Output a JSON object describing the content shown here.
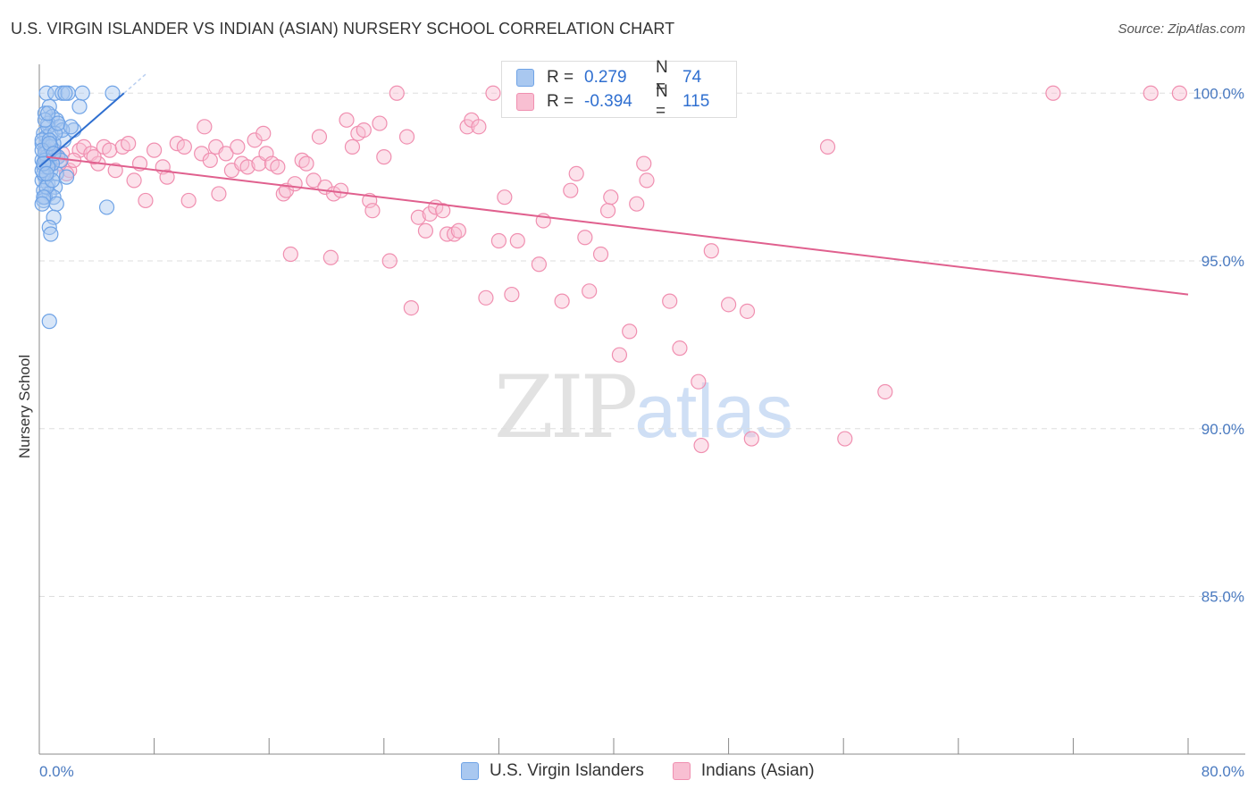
{
  "title": "U.S. VIRGIN ISLANDER VS INDIAN (ASIAN) NURSERY SCHOOL CORRELATION CHART",
  "source": "Source: ZipAtlas.com",
  "watermark": {
    "zip": "ZIP",
    "atlas": "atlas"
  },
  "colors": {
    "blue": "#6fa3e6",
    "blue_fill": "#a9c8f0",
    "blue_line": "#2f6fd0",
    "pink": "#f08fb0",
    "pink_fill": "#f8bfd2",
    "pink_line": "#e0608e",
    "grid": "#dddddd",
    "axis": "#888888",
    "tick_text": "#4a7ac0"
  },
  "legend_top": {
    "rows": [
      {
        "r_label": "R =",
        "r_value": "0.279",
        "n_label": "N =",
        "n_value": "74"
      },
      {
        "r_label": "R =",
        "r_value": "-0.394",
        "n_label": "N =",
        "n_value": "115"
      }
    ]
  },
  "legend_bottom": {
    "series1": "U.S. Virgin Islanders",
    "series2": "Indians (Asian)"
  },
  "chart_data": {
    "type": "scatter",
    "title": "U.S. VIRGIN ISLANDER VS INDIAN (ASIAN) NURSERY SCHOOL CORRELATION CHART",
    "xlabel": "",
    "ylabel": "Nursery School",
    "xlim": [
      0,
      80
    ],
    "ylim": [
      80.3,
      100.7
    ],
    "x_tick_labels": [
      "0.0%",
      "80.0%"
    ],
    "y_ticks": [
      85,
      90,
      95,
      100
    ],
    "y_tick_labels": [
      "85.0%",
      "90.0%",
      "95.0%",
      "100.0%"
    ],
    "grid": true,
    "series": [
      {
        "name": "U.S. Virgin Islanders",
        "r": 0.279,
        "n": 74,
        "trend": {
          "x": [
            0.0,
            5.9
          ],
          "y": [
            97.8,
            100.0
          ]
        },
        "points": [
          [
            0.5,
            100.0
          ],
          [
            1.1,
            100.0
          ],
          [
            1.6,
            100.0
          ],
          [
            2.0,
            100.0
          ],
          [
            3.0,
            100.0
          ],
          [
            5.1,
            100.0
          ],
          [
            0.7,
            99.6
          ],
          [
            2.8,
            99.6
          ],
          [
            0.4,
            99.4
          ],
          [
            0.9,
            99.3
          ],
          [
            1.2,
            99.2
          ],
          [
            0.6,
            99.1
          ],
          [
            1.4,
            99.0
          ],
          [
            2.4,
            98.9
          ],
          [
            0.3,
            98.8
          ],
          [
            0.8,
            98.8
          ],
          [
            0.5,
            98.7
          ],
          [
            1.7,
            98.6
          ],
          [
            0.2,
            98.5
          ],
          [
            0.6,
            98.4
          ],
          [
            1.0,
            98.5
          ],
          [
            0.4,
            98.3
          ],
          [
            0.9,
            98.2
          ],
          [
            1.3,
            98.1
          ],
          [
            0.2,
            98.0
          ],
          [
            0.5,
            98.0
          ],
          [
            0.7,
            97.9
          ],
          [
            1.5,
            98.0
          ],
          [
            0.3,
            97.8
          ],
          [
            0.8,
            97.7
          ],
          [
            0.4,
            97.5
          ],
          [
            1.2,
            97.6
          ],
          [
            1.9,
            97.5
          ],
          [
            0.2,
            97.4
          ],
          [
            0.6,
            97.3
          ],
          [
            1.1,
            97.2
          ],
          [
            0.3,
            97.1
          ],
          [
            0.7,
            97.0
          ],
          [
            0.4,
            96.9
          ],
          [
            1.0,
            96.9
          ],
          [
            0.3,
            96.8
          ],
          [
            1.2,
            96.7
          ],
          [
            4.7,
            96.6
          ],
          [
            1.0,
            96.3
          ],
          [
            0.7,
            96.0
          ],
          [
            0.8,
            95.8
          ],
          [
            0.7,
            93.2
          ],
          [
            0.2,
            98.6
          ],
          [
            0.5,
            98.1
          ],
          [
            0.9,
            97.9
          ],
          [
            0.3,
            97.6
          ],
          [
            0.6,
            99.0
          ],
          [
            0.4,
            98.2
          ],
          [
            1.6,
            98.9
          ],
          [
            0.2,
            97.7
          ],
          [
            0.8,
            98.4
          ],
          [
            1.1,
            98.8
          ],
          [
            0.5,
            97.2
          ],
          [
            0.3,
            96.9
          ],
          [
            0.7,
            98.6
          ],
          [
            0.4,
            98.0
          ],
          [
            0.9,
            97.4
          ],
          [
            1.3,
            99.1
          ],
          [
            0.2,
            98.3
          ],
          [
            0.6,
            97.8
          ],
          [
            2.2,
            99.0
          ],
          [
            0.4,
            99.2
          ],
          [
            1.8,
            100.0
          ],
          [
            0.3,
            97.9
          ],
          [
            0.7,
            98.5
          ],
          [
            0.5,
            97.6
          ],
          [
            1.0,
            98.2
          ],
          [
            0.2,
            96.7
          ],
          [
            0.6,
            99.4
          ]
        ]
      },
      {
        "name": "Indians (Asian)",
        "r": -0.394,
        "n": 115,
        "trend": {
          "x": [
            0.5,
            80.0
          ],
          "y": [
            98.1,
            94.0
          ]
        },
        "points": [
          [
            0.6,
            98.3
          ],
          [
            0.9,
            98.0
          ],
          [
            1.2,
            98.1
          ],
          [
            1.6,
            98.2
          ],
          [
            2.1,
            97.7
          ],
          [
            2.8,
            98.3
          ],
          [
            3.1,
            98.4
          ],
          [
            3.6,
            98.2
          ],
          [
            4.1,
            97.9
          ],
          [
            4.5,
            98.4
          ],
          [
            4.9,
            98.3
          ],
          [
            5.3,
            97.7
          ],
          [
            5.8,
            98.4
          ],
          [
            6.2,
            98.5
          ],
          [
            6.6,
            97.4
          ],
          [
            7.0,
            97.9
          ],
          [
            7.4,
            96.8
          ],
          [
            8.0,
            98.3
          ],
          [
            8.6,
            97.8
          ],
          [
            8.9,
            97.5
          ],
          [
            9.6,
            98.5
          ],
          [
            10.1,
            98.4
          ],
          [
            10.4,
            96.8
          ],
          [
            11.3,
            98.2
          ],
          [
            11.5,
            99.0
          ],
          [
            11.9,
            98.0
          ],
          [
            12.3,
            98.4
          ],
          [
            12.5,
            97.0
          ],
          [
            13.0,
            98.2
          ],
          [
            13.4,
            97.7
          ],
          [
            13.8,
            98.4
          ],
          [
            14.1,
            97.9
          ],
          [
            14.5,
            97.8
          ],
          [
            15.0,
            98.6
          ],
          [
            15.3,
            97.9
          ],
          [
            15.6,
            98.8
          ],
          [
            15.8,
            98.2
          ],
          [
            16.2,
            97.9
          ],
          [
            16.6,
            97.8
          ],
          [
            17.0,
            97.0
          ],
          [
            17.2,
            97.1
          ],
          [
            17.5,
            95.2
          ],
          [
            17.8,
            97.3
          ],
          [
            18.3,
            98.0
          ],
          [
            18.6,
            97.9
          ],
          [
            19.1,
            97.4
          ],
          [
            19.5,
            98.7
          ],
          [
            19.9,
            97.2
          ],
          [
            20.3,
            95.1
          ],
          [
            20.5,
            97.0
          ],
          [
            21.0,
            97.1
          ],
          [
            21.4,
            99.2
          ],
          [
            21.8,
            98.4
          ],
          [
            22.2,
            98.8
          ],
          [
            22.6,
            98.9
          ],
          [
            23.0,
            96.8
          ],
          [
            23.2,
            96.5
          ],
          [
            23.7,
            99.1
          ],
          [
            24.0,
            98.1
          ],
          [
            24.4,
            95.0
          ],
          [
            24.9,
            100.0
          ],
          [
            25.6,
            98.7
          ],
          [
            25.9,
            93.6
          ],
          [
            26.4,
            96.3
          ],
          [
            26.9,
            95.9
          ],
          [
            27.2,
            96.4
          ],
          [
            27.6,
            96.6
          ],
          [
            28.1,
            96.5
          ],
          [
            28.4,
            95.8
          ],
          [
            28.9,
            95.8
          ],
          [
            29.2,
            95.9
          ],
          [
            29.8,
            99.0
          ],
          [
            30.1,
            99.2
          ],
          [
            30.6,
            99.0
          ],
          [
            31.1,
            93.9
          ],
          [
            31.6,
            100.0
          ],
          [
            32.0,
            95.6
          ],
          [
            32.4,
            96.9
          ],
          [
            32.9,
            94.0
          ],
          [
            33.3,
            95.6
          ],
          [
            34.8,
            94.9
          ],
          [
            35.1,
            96.2
          ],
          [
            36.4,
            93.8
          ],
          [
            37.0,
            97.1
          ],
          [
            37.4,
            97.6
          ],
          [
            38.0,
            95.7
          ],
          [
            38.3,
            94.1
          ],
          [
            39.1,
            95.2
          ],
          [
            39.6,
            96.5
          ],
          [
            39.8,
            96.9
          ],
          [
            40.4,
            92.2
          ],
          [
            41.1,
            92.9
          ],
          [
            41.6,
            96.7
          ],
          [
            42.1,
            97.9
          ],
          [
            42.3,
            97.4
          ],
          [
            43.9,
            93.8
          ],
          [
            44.6,
            92.4
          ],
          [
            45.9,
            91.4
          ],
          [
            46.1,
            89.5
          ],
          [
            46.8,
            95.3
          ],
          [
            47.0,
            100.0
          ],
          [
            48.0,
            93.7
          ],
          [
            49.3,
            93.5
          ],
          [
            49.6,
            89.7
          ],
          [
            54.9,
            98.4
          ],
          [
            56.1,
            89.7
          ],
          [
            58.9,
            91.1
          ],
          [
            70.6,
            100.0
          ],
          [
            77.4,
            100.0
          ],
          [
            79.4,
            100.0
          ],
          [
            1.9,
            97.6
          ],
          [
            2.4,
            98.0
          ],
          [
            3.8,
            98.1
          ],
          [
            0.8,
            98.2
          ],
          [
            1.4,
            97.9
          ]
        ]
      }
    ]
  }
}
